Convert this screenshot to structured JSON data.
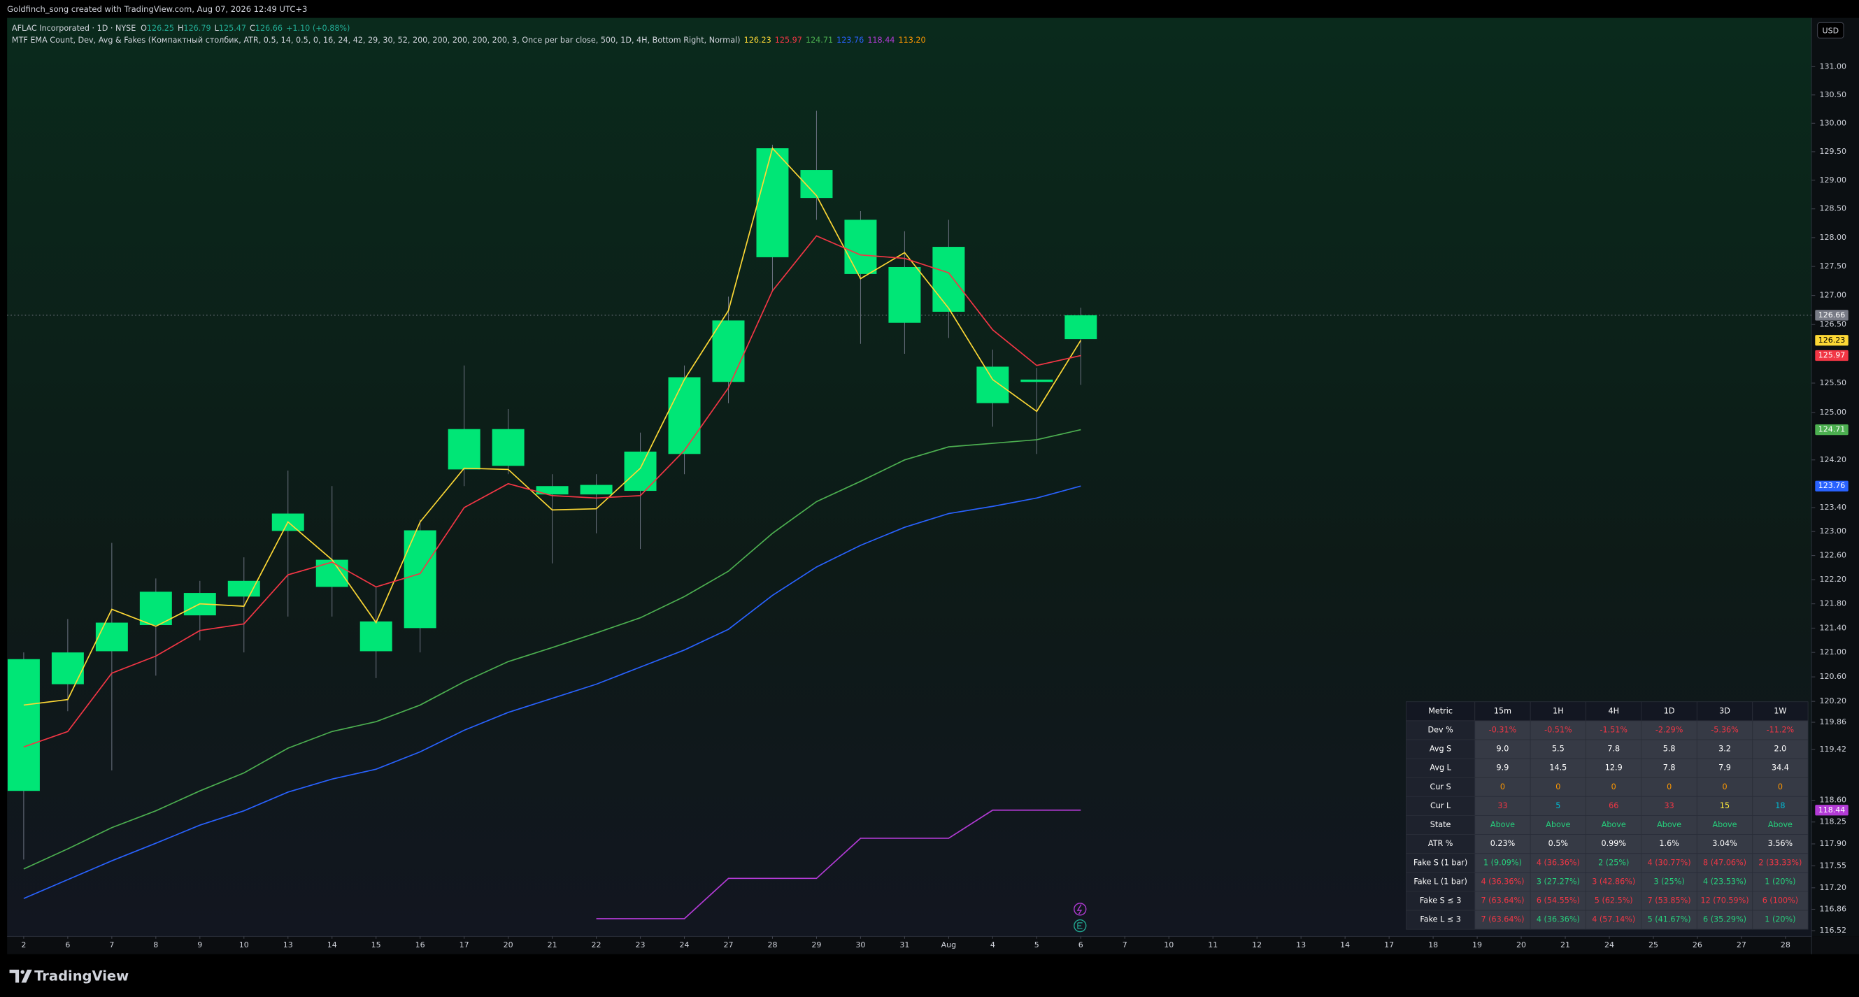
{
  "header": {
    "credit": "Goldfinch_song created with TradingView.com, Aug 07, 2026 12:49 UTC+3",
    "currency": "USD"
  },
  "legend": {
    "symbol": "AFLAC Incorporated · 1D · NYSE",
    "ohlc_letters": [
      "O",
      "H",
      "L",
      "C"
    ],
    "change": "+1.10 (+0.88%)",
    "indicator": "MTF EMA Count, Dev, Avg & Fakes (Компактный столбик, ATR, 0.5, 14, 0.5, 0, 16, 24, 42, 29, 30, 52, 200, 200, 200, 200, 200, 3, Once per bar close, 500, 1D, 4H, Bottom Right, Normal)",
    "hidden_plot": {
      "color": "#ff9800",
      "value_label": "113.20"
    }
  },
  "footer": {
    "brand": "TradingView"
  },
  "chart_data": {
    "type": "candlestick",
    "log_scale": true,
    "grid": false,
    "up_color": "#00e676",
    "down_color": "#f23645",
    "last_price_color": "#787b86",
    "categories": [
      "2",
      "6",
      "7",
      "8",
      "9",
      "10",
      "13",
      "14",
      "15",
      "16",
      "17",
      "20",
      "21",
      "22",
      "23",
      "24",
      "27",
      "28",
      "29",
      "30",
      "31",
      "Aug",
      "4",
      "5",
      "6",
      "7",
      "10",
      "11",
      "12",
      "13",
      "14",
      "17",
      "18",
      "19",
      "20",
      "21",
      "24",
      "25",
      "26",
      "27",
      "28"
    ],
    "open": [
      118.75,
      120.48,
      121.02,
      121.45,
      121.61,
      121.92,
      123.01,
      122.08,
      121.02,
      121.4,
      124.04,
      124.1,
      123.62,
      123.62,
      123.68,
      124.3,
      125.52,
      127.66,
      128.69,
      127.37,
      126.53,
      126.72,
      125.16,
      125.52,
      126.25,
      null,
      null,
      null,
      null,
      null,
      null,
      null,
      null,
      null,
      null,
      null,
      null,
      null,
      null,
      null,
      null
    ],
    "high": [
      121.0,
      121.55,
      122.81,
      122.22,
      122.18,
      122.57,
      124.02,
      123.76,
      122.08,
      123.2,
      125.8,
      125.06,
      123.96,
      123.96,
      124.66,
      125.8,
      126.98,
      129.62,
      130.22,
      128.46,
      128.11,
      128.31,
      126.07,
      125.76,
      126.79,
      null,
      null,
      null,
      null,
      null,
      null,
      null,
      null,
      null,
      null,
      null,
      null,
      null,
      null,
      null,
      null
    ],
    "low": [
      117.65,
      120.04,
      119.08,
      120.62,
      121.2,
      121.0,
      121.59,
      121.59,
      120.58,
      121.0,
      123.76,
      123.96,
      122.47,
      122.97,
      122.71,
      123.96,
      125.16,
      127.08,
      128.31,
      126.17,
      126.0,
      126.27,
      124.76,
      124.3,
      125.47,
      null,
      null,
      null,
      null,
      null,
      null,
      null,
      null,
      null,
      null,
      null,
      null,
      null,
      null,
      null,
      null
    ],
    "close": [
      120.89,
      121.0,
      121.49,
      122.0,
      121.98,
      122.18,
      123.3,
      122.53,
      121.51,
      123.02,
      124.72,
      124.72,
      123.76,
      123.78,
      124.34,
      125.6,
      126.57,
      129.56,
      129.18,
      128.31,
      127.49,
      127.84,
      125.78,
      125.56,
      126.66,
      null,
      null,
      null,
      null,
      null,
      null,
      null,
      null,
      null,
      null,
      null,
      null,
      null,
      null,
      null,
      null
    ],
    "series": [
      {
        "color": "#fdd835",
        "values": [
          120.14,
          120.23,
          121.71,
          121.43,
          121.8,
          121.76,
          123.16,
          122.53,
          121.49,
          123.16,
          124.06,
          124.04,
          123.36,
          123.38,
          124.06,
          125.56,
          126.74,
          129.56,
          128.73,
          127.29,
          127.74,
          126.78,
          125.56,
          125.02,
          126.23,
          null,
          null,
          null,
          null,
          null,
          null,
          null,
          null,
          null,
          null,
          null,
          null,
          null,
          null,
          null,
          null
        ]
      },
      {
        "color": "#f23645",
        "values": [
          119.46,
          119.71,
          120.66,
          120.94,
          121.36,
          121.47,
          122.28,
          122.49,
          122.08,
          122.3,
          123.4,
          123.8,
          123.6,
          123.56,
          123.6,
          124.36,
          125.42,
          127.08,
          128.03,
          127.7,
          127.64,
          127.39,
          126.41,
          125.8,
          125.97,
          null,
          null,
          null,
          null,
          null,
          null,
          null,
          null,
          null,
          null,
          null,
          null,
          null,
          null,
          null,
          null
        ]
      },
      {
        "color": "#4caf50",
        "values": [
          117.5,
          117.82,
          118.16,
          118.43,
          118.75,
          119.04,
          119.44,
          119.71,
          119.87,
          120.14,
          120.52,
          120.85,
          121.08,
          121.32,
          121.57,
          121.92,
          122.34,
          122.97,
          123.5,
          123.84,
          124.2,
          124.42,
          124.48,
          124.54,
          124.71,
          null,
          null,
          null,
          null,
          null,
          null,
          null,
          null,
          null,
          null,
          null,
          null,
          null,
          null,
          null,
          null
        ]
      },
      {
        "color": "#2962ff",
        "values": [
          117.03,
          117.33,
          117.63,
          117.91,
          118.2,
          118.43,
          118.73,
          118.94,
          119.1,
          119.38,
          119.73,
          120.02,
          120.25,
          120.48,
          120.76,
          121.04,
          121.38,
          121.94,
          122.41,
          122.77,
          123.07,
          123.3,
          123.42,
          123.56,
          123.76,
          null,
          null,
          null,
          null,
          null,
          null,
          null,
          null,
          null,
          null,
          null,
          null,
          null,
          null,
          null,
          null
        ]
      },
      {
        "color": "#b33bd6",
        "values": [
          null,
          null,
          null,
          null,
          null,
          null,
          null,
          null,
          null,
          null,
          null,
          null,
          null,
          116.71,
          116.71,
          116.71,
          117.35,
          117.35,
          117.35,
          117.99,
          117.99,
          117.99,
          118.44,
          118.44,
          118.44,
          null,
          null,
          null,
          null,
          null,
          null,
          null,
          null,
          null,
          null,
          null,
          null,
          null,
          null,
          null,
          null
        ]
      }
    ],
    "ylim": [
      116.43,
      131.87
    ],
    "yticks": [
      {
        "value": 131,
        "label": "131.00"
      },
      {
        "value": 130.5,
        "label": "130.50"
      },
      {
        "value": 130,
        "label": "130.00"
      },
      {
        "value": 129.5,
        "label": "129.50"
      },
      {
        "value": 129,
        "label": "129.00"
      },
      {
        "value": 128.5,
        "label": "128.50"
      },
      {
        "value": 128,
        "label": "128.00"
      },
      {
        "value": 127.5,
        "label": "127.50"
      },
      {
        "value": 127,
        "label": "127.00"
      },
      {
        "value": 126.5,
        "label": "126.50"
      },
      {
        "value": 125.5,
        "label": "125.50"
      },
      {
        "value": 125,
        "label": "125.00"
      },
      {
        "value": 124.2,
        "label": "124.20"
      },
      {
        "value": 123.4,
        "label": "123.40"
      },
      {
        "value": 123,
        "label": "123.00"
      },
      {
        "value": 122.6,
        "label": "122.60"
      },
      {
        "value": 122.2,
        "label": "122.20"
      },
      {
        "value": 121.8,
        "label": "121.80"
      },
      {
        "value": 121.4,
        "label": "121.40"
      },
      {
        "value": 121,
        "label": "121.00"
      },
      {
        "value": 120.6,
        "label": "120.60"
      },
      {
        "value": 120.2,
        "label": "120.20"
      },
      119.86,
      119.42,
      {
        "value": 118.6,
        "label": "118.60"
      },
      118.25,
      {
        "value": 117.9,
        "label": "117.90"
      },
      117.55,
      {
        "value": 117.2,
        "label": "117.20"
      },
      116.86,
      116.52
    ]
  },
  "table": {
    "palette": {
      "w": "#ffffff",
      "r": "#f23645",
      "g": "#26d07c",
      "o": "#ff9800",
      "y": "#ffeb3b",
      "c": "#00bcd4"
    },
    "header": [
      "Metric",
      "15m",
      "1H",
      "4H",
      "1D",
      "3D",
      "1W"
    ],
    "rows": [
      [
        "Dev %",
        "-0.31%",
        "-0.51%",
        "-1.51%",
        "-2.29%",
        "-5.36%",
        "-11.2%"
      ],
      [
        "Avg S",
        "9.0",
        "5.5",
        "7.8",
        "5.8",
        "3.2",
        "2.0"
      ],
      [
        "Avg L",
        "9.9",
        "14.5",
        "12.9",
        "7.8",
        "7.9",
        "34.4"
      ],
      [
        "Cur S",
        "0",
        "0",
        "0",
        "0",
        "0",
        "0"
      ],
      [
        "Cur L",
        "33",
        "5",
        "66",
        "33",
        "15",
        "18"
      ],
      [
        "State",
        "Above",
        "Above",
        "Above",
        "Above",
        "Above",
        "Above"
      ],
      [
        "ATR %",
        "0.23%",
        "0.5%",
        "0.99%",
        "1.6%",
        "3.04%",
        "3.56%"
      ],
      [
        "Fake S (1 bar)",
        "1 (9.09%)",
        "4 (36.36%)",
        "2 (25%)",
        "4 (30.77%)",
        "8 (47.06%)",
        "2 (33.33%)"
      ],
      [
        "Fake L (1 bar)",
        "4 (36.36%)",
        "3 (27.27%)",
        "3 (42.86%)",
        "3 (25%)",
        "4 (23.53%)",
        "1 (20%)"
      ],
      [
        "Fake S ≤ 3",
        "7 (63.64%)",
        "6 (54.55%)",
        "5 (62.5%)",
        "7 (53.85%)",
        "12 (70.59%)",
        "6 (100%)"
      ],
      [
        "Fake L ≤ 3",
        "7 (63.64%)",
        "4 (36.36%)",
        "4 (57.14%)",
        "5 (41.67%)",
        "6 (35.29%)",
        "1 (20%)"
      ]
    ],
    "colors": [
      [
        "w",
        "r",
        "r",
        "r",
        "r",
        "r",
        "r"
      ],
      [
        "w",
        "w",
        "w",
        "w",
        "w",
        "w",
        "w"
      ],
      [
        "w",
        "w",
        "w",
        "w",
        "w",
        "w",
        "w"
      ],
      [
        "w",
        "o",
        "o",
        "o",
        "o",
        "o",
        "o"
      ],
      [
        "w",
        "r",
        "c",
        "r",
        "r",
        "y",
        "c"
      ],
      [
        "w",
        "g",
        "g",
        "g",
        "g",
        "g",
        "g"
      ],
      [
        "w",
        "w",
        "w",
        "w",
        "w",
        "w",
        "w"
      ],
      [
        "w",
        "g",
        "r",
        "g",
        "r",
        "r",
        "r"
      ],
      [
        "w",
        "r",
        "g",
        "r",
        "g",
        "g",
        "g"
      ],
      [
        "w",
        "r",
        "r",
        "r",
        "r",
        "r",
        "r"
      ],
      [
        "w",
        "r",
        "g",
        "r",
        "g",
        "g",
        "g"
      ]
    ]
  }
}
